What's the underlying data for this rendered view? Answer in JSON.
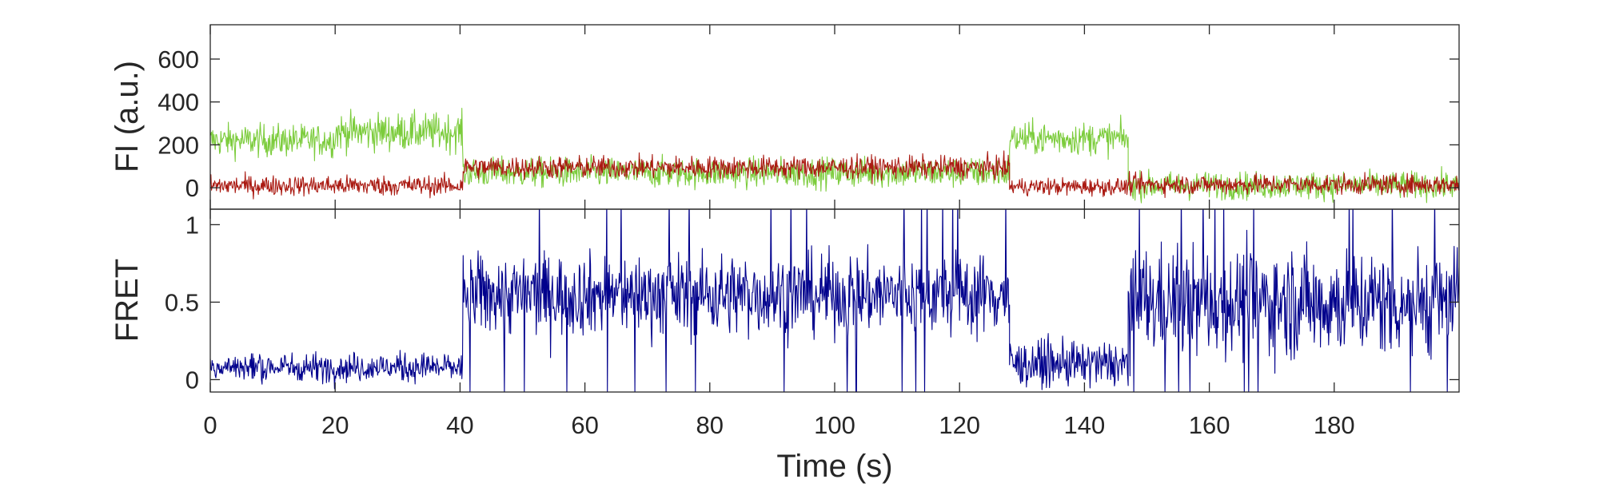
{
  "chart_data": [
    {
      "type": "line",
      "panel": "top",
      "ylabel": "FI (a.u.)",
      "xlabel": "",
      "xlim": [
        0,
        200
      ],
      "ylim": [
        -100,
        760
      ],
      "yticks": [
        0,
        200,
        400,
        600
      ],
      "ytick_labels": [
        "0",
        "200",
        "400",
        "600"
      ],
      "grid": false,
      "legend": "none",
      "segments_note_units": "seconds / a.u.",
      "series": [
        {
          "color": "#7ccc3c",
          "segments": [
            {
              "start": 0,
              "end": 20,
              "mean": 220,
              "noise": 130
            },
            {
              "start": 20,
              "end": 40.5,
              "mean": 260,
              "noise": 150
            },
            {
              "start": 40.5,
              "end": 128,
              "mean": 70,
              "noise": 120
            },
            {
              "start": 128,
              "end": 147,
              "mean": 230,
              "noise": 130
            },
            {
              "start": 147,
              "end": 200,
              "mean": 10,
              "noise": 110
            }
          ]
        },
        {
          "color": "#aa1a12",
          "segments": [
            {
              "start": 0,
              "end": 40.5,
              "mean": 10,
              "noise": 80
            },
            {
              "start": 40.5,
              "end": 128,
              "mean": 95,
              "noise": 90
            },
            {
              "start": 128,
              "end": 147,
              "mean": 5,
              "noise": 70
            },
            {
              "start": 147,
              "end": 200,
              "mean": 15,
              "noise": 80
            }
          ]
        }
      ]
    },
    {
      "type": "line",
      "panel": "bottom",
      "ylabel": "FRET",
      "xlabel": "Time (s)",
      "xlim": [
        0,
        200
      ],
      "ylim": [
        -0.08,
        1.1
      ],
      "xticks": [
        0,
        20,
        40,
        60,
        80,
        100,
        120,
        140,
        160,
        180
      ],
      "xtick_labels": [
        "0",
        "20",
        "40",
        "60",
        "80",
        "100",
        "120",
        "140",
        "160",
        "180"
      ],
      "yticks": [
        0,
        0.5,
        1
      ],
      "ytick_labels": [
        "0",
        "0.5",
        "1"
      ],
      "grid": false,
      "legend": "none",
      "series": [
        {
          "color": "#00008c",
          "segments": [
            {
              "start": 0,
              "end": 40.5,
              "mean": 0.08,
              "noise": 0.16
            },
            {
              "start": 40.5,
              "end": 128,
              "mean": 0.55,
              "noise": 0.45
            },
            {
              "start": 128,
              "end": 147,
              "mean": 0.1,
              "noise": 0.25
            },
            {
              "start": 147,
              "end": 200,
              "mean": 0.5,
              "noise": 0.6
            }
          ]
        }
      ]
    }
  ]
}
